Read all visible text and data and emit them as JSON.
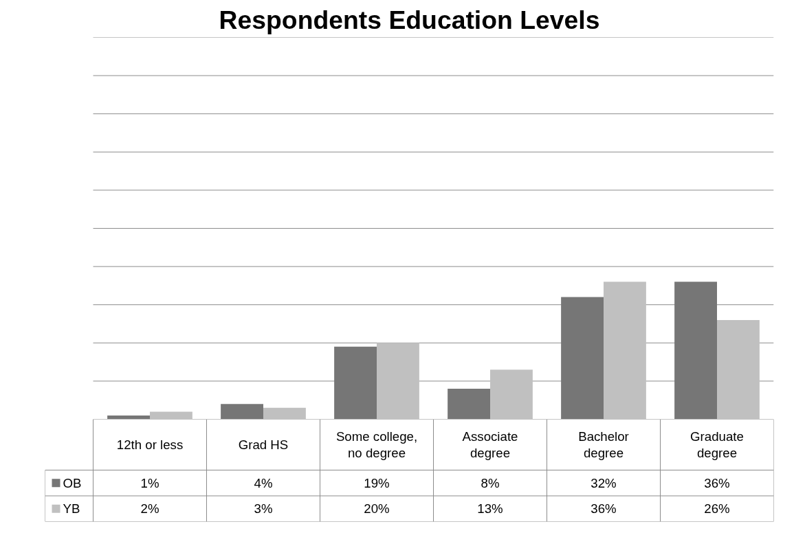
{
  "chart_data": {
    "type": "bar",
    "title": "Respondents Education Levels",
    "categories": [
      "12th or less",
      "Grad HS",
      "Some college,\nno degree",
      "Associate\ndegree",
      "Bachelor\ndegree",
      "Graduate\ndegree"
    ],
    "series": [
      {
        "name": "OB",
        "color": "#767676",
        "values": [
          1,
          4,
          19,
          8,
          32,
          36
        ],
        "value_labels": [
          "1%",
          "4%",
          "19%",
          "8%",
          "32%",
          "36%"
        ]
      },
      {
        "name": "YB",
        "color": "#c0c0c0",
        "values": [
          2,
          3,
          20,
          13,
          36,
          26
        ],
        "value_labels": [
          "2%",
          "3%",
          "20%",
          "13%",
          "36%",
          "26%"
        ]
      }
    ],
    "ylim": [
      0,
      100
    ],
    "yticks": [
      {
        "value": 0,
        "label": null
      },
      {
        "value": 10,
        "label": null
      },
      {
        "value": 20,
        "label": null
      },
      {
        "value": 30,
        "label": null
      },
      {
        "value": 40,
        "label": null
      },
      {
        "value": 50,
        "label": null
      },
      {
        "value": 60,
        "label": null
      },
      {
        "value": 70,
        "label": null
      },
      {
        "value": 80,
        "label": null
      },
      {
        "value": 90,
        "label": null
      },
      {
        "value": 100,
        "label": null
      }
    ],
    "grid": "y",
    "legend": "bottom left",
    "tick_labels": "x"
  }
}
